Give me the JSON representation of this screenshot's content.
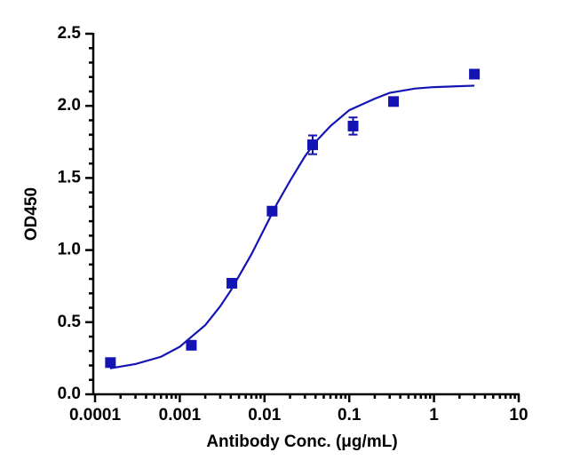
{
  "chart_data": {
    "type": "scatter",
    "x_label": "Antibody Conc. (μg/mL)",
    "y_label": "OD450",
    "x_scale": "log",
    "xlim": [
      0.0001,
      10
    ],
    "ylim": [
      0,
      2.5
    ],
    "xticks": [
      0.0001,
      0.001,
      0.01,
      0.1,
      1,
      10
    ],
    "xminor_ticks": [
      0.0002,
      0.0003,
      0.0004,
      0.0005,
      0.0006,
      0.0007,
      0.0008,
      0.0009,
      0.002,
      0.003,
      0.004,
      0.005,
      0.006,
      0.007,
      0.008,
      0.009,
      0.02,
      0.03,
      0.04,
      0.05,
      0.06,
      0.07,
      0.08,
      0.09,
      0.2,
      0.3,
      0.4,
      0.5,
      0.6,
      0.7,
      0.8,
      0.9,
      2,
      3,
      4,
      5,
      6,
      7,
      8,
      9
    ],
    "yticks": [
      {
        "value": 0,
        "label": "0.0"
      },
      0.5,
      {
        "value": 1,
        "label": "1.0"
      },
      1.5,
      {
        "value": 2,
        "label": "2.0"
      },
      2.5
    ],
    "yminor_ticks": [
      0.1,
      0.2,
      0.3,
      0.4,
      0.6,
      0.7,
      0.8,
      0.9,
      1.1,
      1.2,
      1.3,
      1.4,
      1.6,
      1.7,
      1.8,
      1.9,
      2.1,
      2.2,
      2.3,
      2.4
    ],
    "color": "#1414b4",
    "series": [
      {
        "type": "scatter",
        "x": [
          0.000152,
          0.00137,
          0.00412,
          0.0123,
          0.037,
          0.111,
          0.333,
          3
        ],
        "values": [
          0.22,
          0.34,
          0.77,
          1.27,
          1.73,
          1.86,
          2.03,
          2.22
        ],
        "errors": [
          0.01,
          0.01,
          0.01,
          0.01,
          0.065,
          0.06,
          0.01,
          0.01
        ]
      },
      {
        "type": "line",
        "x": [
          0.00015,
          0.0003,
          0.0006,
          0.001,
          0.002,
          0.003,
          0.004,
          0.005,
          0.007,
          0.01,
          0.014,
          0.02,
          0.03,
          0.04,
          0.06,
          0.1,
          0.2,
          0.3,
          0.6,
          1,
          3
        ],
        "values": [
          0.18,
          0.21,
          0.26,
          0.33,
          0.48,
          0.61,
          0.72,
          0.82,
          0.97,
          1.15,
          1.32,
          1.48,
          1.65,
          1.75,
          1.86,
          1.97,
          2.05,
          2.09,
          2.12,
          2.13,
          2.14
        ]
      }
    ]
  }
}
